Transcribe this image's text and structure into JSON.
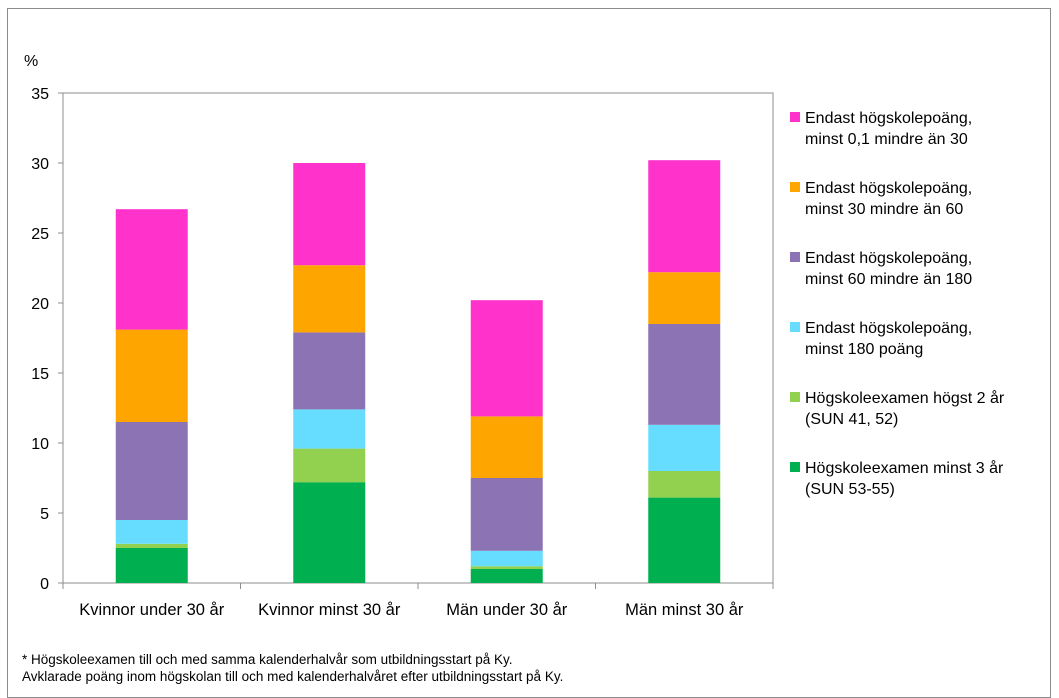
{
  "chart_data": {
    "type": "bar",
    "stacked": true,
    "ylabel": "%",
    "ylim": [
      0,
      35
    ],
    "yticks": [
      0,
      5,
      10,
      15,
      20,
      25,
      30,
      35
    ],
    "grid": false,
    "legend_position": "right",
    "categories": [
      "Kvinnor under 30 år",
      "Kvinnor minst 30 år",
      "Män under 30 år",
      "Män minst 30 år"
    ],
    "series": [
      {
        "name": "Högskoleexamen minst 3 år (SUN 53-55)",
        "label_lines": [
          "Högskoleexamen minst 3 år",
          "(SUN 53-55)"
        ],
        "color": "#00b050",
        "values": [
          2.5,
          7.2,
          1.0,
          6.1
        ]
      },
      {
        "name": "Högskoleexamen högst 2 år (SUN 41, 52)",
        "label_lines": [
          "Högskoleexamen högst 2 år",
          "(SUN 41, 52)"
        ],
        "color": "#92d050",
        "values": [
          0.3,
          2.4,
          0.2,
          1.9
        ]
      },
      {
        "name": "Endast högskolepoäng, minst 180 poäng",
        "label_lines": [
          "Endast högskolepoäng,",
          "minst 180 poäng"
        ],
        "color": "#66ddff",
        "values": [
          1.7,
          2.8,
          1.1,
          3.3
        ]
      },
      {
        "name": "Endast högskolepoäng, minst 60 mindre än 180",
        "label_lines": [
          "Endast högskolepoäng,",
          "minst 60 mindre än 180"
        ],
        "color": "#8c73b4",
        "values": [
          7.0,
          5.5,
          5.2,
          7.2
        ]
      },
      {
        "name": "Endast högskolepoäng, minst 30 mindre än 60",
        "label_lines": [
          "Endast högskolepoäng,",
          "minst 30 mindre än 60"
        ],
        "color": "#ffa500",
        "values": [
          6.6,
          4.8,
          4.4,
          3.7
        ]
      },
      {
        "name": "Endast högskolepoäng, minst 0,1 mindre än 30",
        "label_lines": [
          "Endast högskolepoäng,",
          "minst 0,1 mindre än 30"
        ],
        "color": "#ff33cc",
        "values": [
          8.6,
          7.3,
          8.3,
          8.0
        ]
      }
    ]
  },
  "footnotes": [
    "* Högskoleexamen till och med samma kalenderhalvår som utbildningsstart på Ky.",
    "Avklarade poäng inom högskolan till och med kalenderhalvåret efter utbildningsstart på Ky."
  ]
}
